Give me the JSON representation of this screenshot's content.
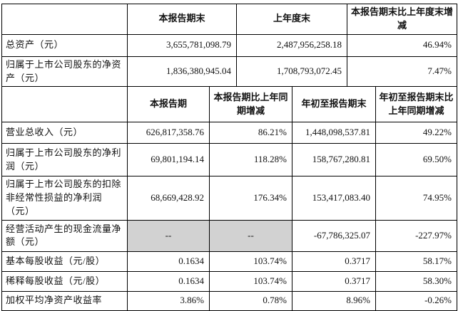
{
  "table1": {
    "headers": [
      "",
      "本报告期末",
      "上年度末",
      "本报告期末比上年度末增减"
    ],
    "rows": [
      {
        "label": "总资产（元）",
        "values": [
          "3,655,781,098.79",
          "2,487,956,258.18",
          "46.94%"
        ],
        "highlight": [
          false,
          false,
          false
        ]
      },
      {
        "label": "归属于上市公司股东的净资产（元）",
        "values": [
          "1,836,380,945.04",
          "1,708,793,072.45",
          "7.47%"
        ],
        "highlight": [
          false,
          false,
          false
        ]
      }
    ]
  },
  "table2": {
    "headers": [
      "",
      "本报告期",
      "本报告期比上年同期增减",
      "年初至报告期末",
      "年初至报告期末比上年同期增减"
    ],
    "rows": [
      {
        "label": "营业总收入（元）",
        "values": [
          "626,817,358.76",
          "86.21%",
          "1,448,098,537.81",
          "49.22%"
        ],
        "highlight": [
          false,
          false,
          false,
          false
        ]
      },
      {
        "label": "归属于上市公司股东的净利润（元）",
        "values": [
          "69,801,194.14",
          "118.28%",
          "158,767,280.81",
          "69.50%"
        ],
        "highlight": [
          false,
          false,
          false,
          false
        ]
      },
      {
        "label": "归属于上市公司股东的扣除非经常性损益的净利润（元）",
        "values": [
          "68,669,428.92",
          "176.34%",
          "153,417,083.40",
          "74.95%"
        ],
        "highlight": [
          false,
          false,
          false,
          false
        ]
      },
      {
        "label": "经营活动产生的现金流量净额（元）",
        "values": [
          "--",
          "--",
          "-67,786,325.07",
          "-227.97%"
        ],
        "highlight": [
          true,
          true,
          false,
          false
        ]
      },
      {
        "label": "基本每股收益（元/股）",
        "values": [
          "0.1634",
          "103.74%",
          "0.3717",
          "58.17%"
        ],
        "highlight": [
          false,
          false,
          false,
          false
        ]
      },
      {
        "label": "稀释每股收益（元/股）",
        "values": [
          "0.1634",
          "103.74%",
          "0.3717",
          "58.30%"
        ],
        "highlight": [
          false,
          false,
          false,
          false
        ]
      },
      {
        "label": "加权平均净资产收益率",
        "values": [
          "3.86%",
          "0.78%",
          "8.96%",
          "-0.26%"
        ],
        "highlight": [
          false,
          false,
          false,
          false
        ]
      }
    ]
  },
  "colors": {
    "highlight_bg": "#d2d2d2",
    "border": "#000000",
    "text": "#111111"
  }
}
